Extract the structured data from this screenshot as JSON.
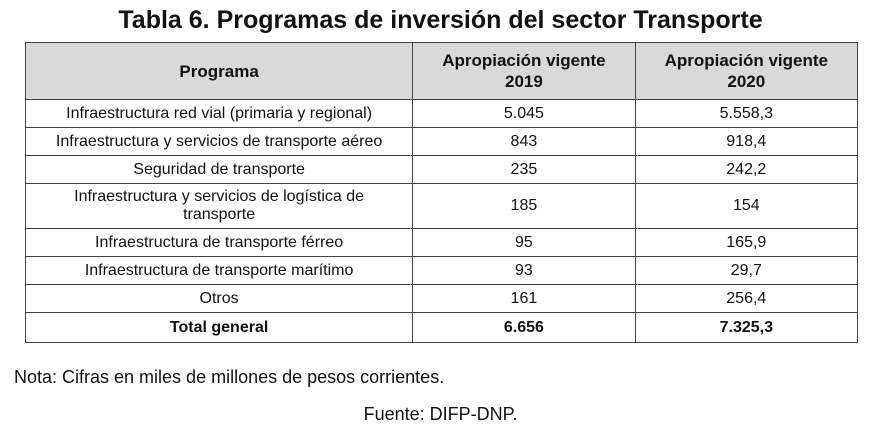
{
  "title": "Tabla 6. Programas de inversión del sector Transporte",
  "table": {
    "headers": {
      "programa": "Programa",
      "col2019_line1": "Apropiación vigente",
      "col2019_line2": "2019",
      "col2020_line1": "Apropiación vigente",
      "col2020_line2": "2020"
    },
    "rows": [
      {
        "programa": "Infraestructura red vial (primaria y regional)",
        "v2019": "5.045",
        "v2020": "5.558,3"
      },
      {
        "programa": "Infraestructura y servicios de transporte aéreo",
        "v2019": "843",
        "v2020": "918,4"
      },
      {
        "programa": "Seguridad de transporte",
        "v2019": "235",
        "v2020": "242,2"
      },
      {
        "programa_line1": "Infraestructura y servicios de logística de",
        "programa_line2": "transporte",
        "v2019": "185",
        "v2020": "154"
      },
      {
        "programa": "Infraestructura de transporte férreo",
        "v2019": "95",
        "v2020": "165,9"
      },
      {
        "programa": "Infraestructura de transporte marítimo",
        "v2019": "93",
        "v2020": "29,7"
      },
      {
        "programa": "Otros",
        "v2019": "161",
        "v2020": "256,4"
      }
    ],
    "total": {
      "programa": "Total general",
      "v2019": "6.656",
      "v2020": "7.325,3"
    }
  },
  "note": "Nota: Cifras en miles de millones de pesos corrientes.",
  "source": "Fuente: DIFP-DNP."
}
